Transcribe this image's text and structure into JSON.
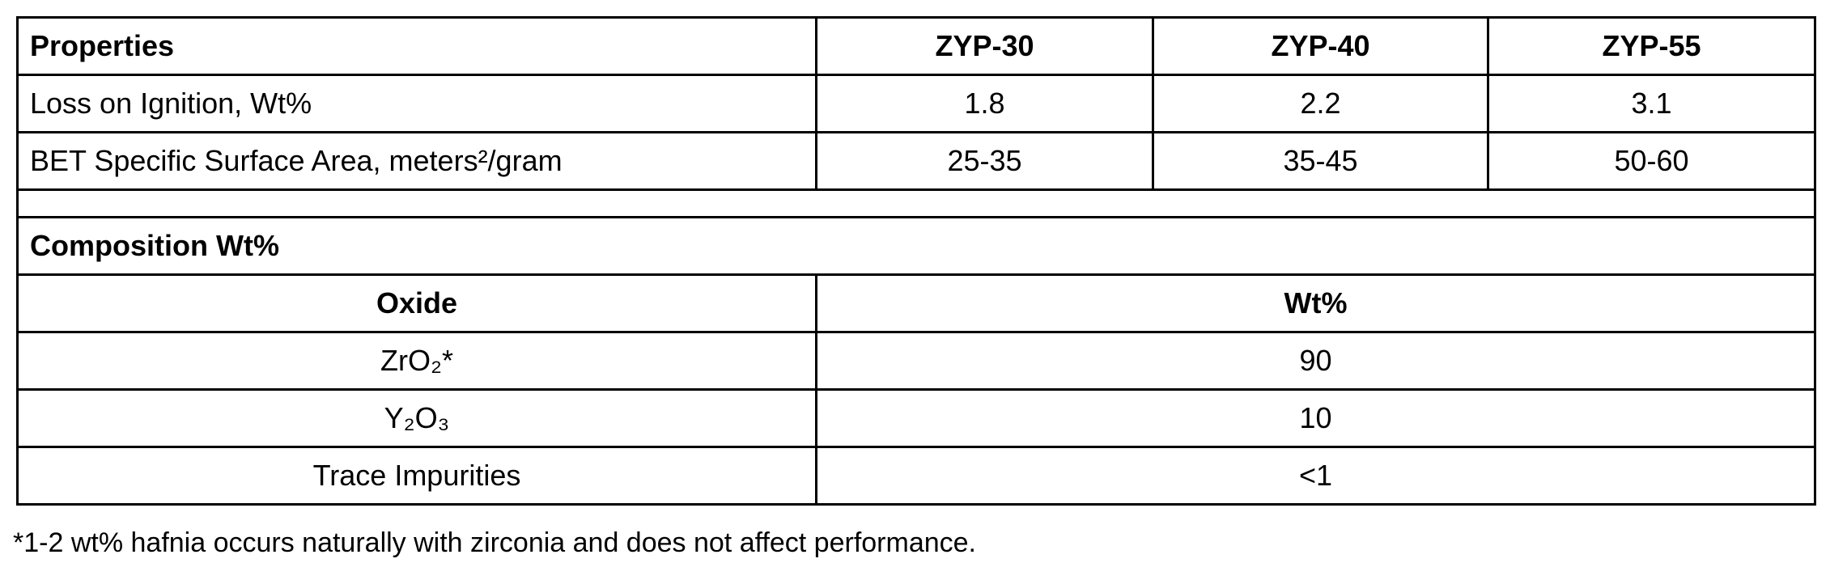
{
  "properties": {
    "header": [
      "Properties",
      "ZYP-30",
      "ZYP-40",
      "ZYP-55"
    ],
    "rows": [
      [
        "Loss on Ignition, Wt%",
        "1.8",
        "2.2",
        "3.1"
      ],
      [
        "BET Specific Surface Area, meters²/gram",
        "25-35",
        "35-45",
        "50-60"
      ]
    ]
  },
  "composition": {
    "title": "Composition Wt%",
    "header": [
      "Oxide",
      "Wt%"
    ],
    "rows": [
      [
        "ZrO₂*",
        "90"
      ],
      [
        "Y₂O₃",
        "10"
      ],
      [
        "Trace Impurities",
        "<1"
      ]
    ]
  },
  "footnote": "*1-2 wt% hafnia occurs naturally with zirconia and does not affect performance."
}
